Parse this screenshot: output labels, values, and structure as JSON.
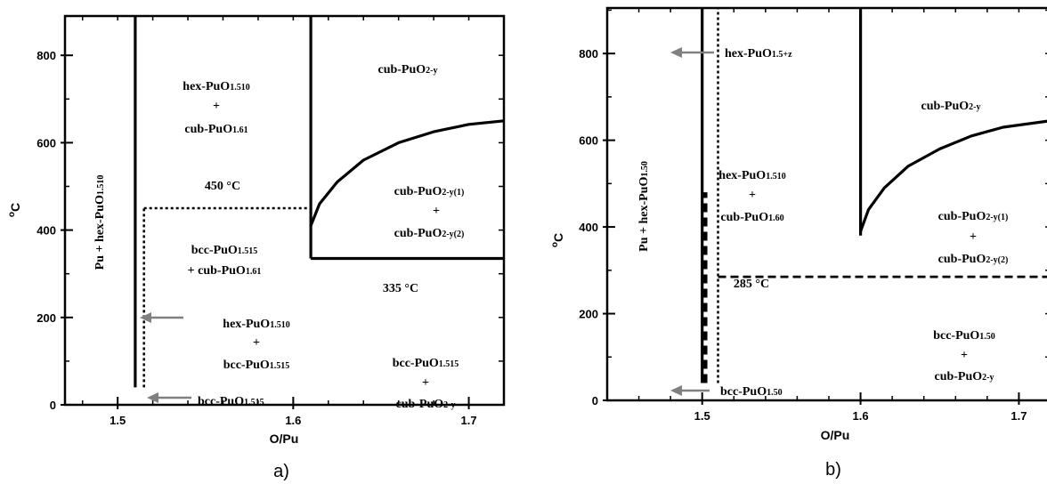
{
  "panels": [
    {
      "id": "a",
      "caption": "a)",
      "xlabel": "O/Pu",
      "ylabel_sup": "o",
      "ylabel": "C",
      "xlim": [
        1.47,
        1.72
      ],
      "ylim": [
        0,
        890
      ],
      "xticks": [
        {
          "v": 1.5,
          "t": "1.5"
        },
        {
          "v": 1.6,
          "t": "1.6"
        },
        {
          "v": 1.7,
          "t": "1.7"
        }
      ],
      "yticks": [
        {
          "v": 0,
          "t": "0"
        },
        {
          "v": 200,
          "t": "200"
        },
        {
          "v": 400,
          "t": "400"
        },
        {
          "v": 600,
          "t": "600"
        },
        {
          "v": 800,
          "t": "800"
        }
      ],
      "labels": {
        "hex_top": "hex-PuO",
        "hex_top_sub": "1.510",
        "plus1": "+",
        "cub_top": "cub-PuO",
        "cub_top_sub": "1.61",
        "temp_450": "450 °C",
        "bcc_mid": "bcc-PuO",
        "bcc_mid_sub": "1.515",
        "cub_mid": "+ cub-PuO",
        "cub_mid_sub": "1.61",
        "temp_335": "335 °C",
        "cub_right": "cub-PuO",
        "cub_right_sub": "2-y",
        "cub_y1": "cub-PuO",
        "cub_y1_sub": "2-y(1)",
        "plus2": "+",
        "cub_y2": "cub-PuO",
        "cub_y2_sub": "2-y(2)",
        "hex_low": "hex-PuO",
        "hex_low_sub": "1.510",
        "plus3": "+",
        "bcc_low": "bcc-PuO",
        "bcc_low_sub": "1.515",
        "bcc_right": "bcc-PuO",
        "bcc_right_sub": "1.515",
        "plus4": "+",
        "cub_low": "cub-PuO",
        "cub_low_sub": "2-y",
        "bcc_arrow": "bcc-PuO",
        "bcc_arrow_sub": "1.515",
        "vert": "Pu + hex-PuO",
        "vert_sub": "1.510"
      }
    },
    {
      "id": "b",
      "caption": "b)",
      "xlabel": "O/Pu",
      "ylabel_sup": "o",
      "ylabel": "C",
      "xlim": [
        1.44,
        1.72
      ],
      "ylim": [
        0,
        905
      ],
      "xticks": [
        {
          "v": 1.5,
          "t": "1.5"
        },
        {
          "v": 1.6,
          "t": "1.6"
        },
        {
          "v": 1.7,
          "t": "1.7"
        }
      ],
      "yticks": [
        {
          "v": 0,
          "t": "0"
        },
        {
          "v": 200,
          "t": "200"
        },
        {
          "v": 400,
          "t": "400"
        },
        {
          "v": 600,
          "t": "600"
        },
        {
          "v": 800,
          "t": "800"
        }
      ],
      "labels": {
        "hex_arrow": "hex-PuO",
        "hex_arrow_sub": "1.5+z",
        "cub_top": "cub-PuO",
        "cub_top_sub": "2-y",
        "hex_mid": "hex-PuO",
        "hex_mid_sub": "1.510",
        "plus1": "+",
        "cub_mid": "cub-PuO",
        "cub_mid_sub": "1.60",
        "temp_285": "285 °C",
        "cub_y1": "cub-PuO",
        "cub_y1_sub": "2-y(1)",
        "plus2": "+",
        "cub_y2": "cub-PuO",
        "cub_y2_sub": "2-y(2)",
        "bcc_right": "bcc-PuO",
        "bcc_right_sub": "1.50",
        "plus3": "+",
        "cub_low": "cub-PuO",
        "cub_low_sub": "2-y",
        "bcc_arrow": "bcc-PuO",
        "bcc_arrow_sub": "1.50",
        "vert": "Pu + hex-PuO",
        "vert_sub": "1.50"
      }
    }
  ],
  "chart_data": [
    {
      "type": "line",
      "title": "",
      "xlabel": "O/Pu",
      "ylabel": "oC",
      "xlim": [
        1.47,
        1.72
      ],
      "ylim": [
        0,
        890
      ],
      "series": [
        {
          "style": "solid",
          "x": [
            1.51,
            1.51
          ],
          "y": [
            40,
            890
          ]
        },
        {
          "style": "solid",
          "x": [
            1.61,
            1.61
          ],
          "y": [
            335,
            890
          ]
        },
        {
          "style": "solid",
          "x": [
            1.61,
            1.72
          ],
          "y": [
            335,
            335
          ]
        },
        {
          "style": "dotted",
          "x": [
            1.515,
            1.515
          ],
          "y": [
            40,
            450
          ]
        },
        {
          "style": "dotted",
          "x": [
            1.515,
            1.61
          ],
          "y": [
            450,
            450
          ]
        },
        {
          "style": "solid",
          "x": [
            1.61,
            1.615,
            1.625,
            1.64,
            1.66,
            1.68,
            1.7,
            1.72
          ],
          "y": [
            410,
            460,
            510,
            560,
            600,
            625,
            642,
            650
          ]
        }
      ]
    },
    {
      "type": "line",
      "title": "",
      "xlabel": "O/Pu",
      "ylabel": "oC",
      "xlim": [
        1.44,
        1.72
      ],
      "ylim": [
        0,
        905
      ],
      "series": [
        {
          "style": "solid",
          "x": [
            1.5,
            1.5
          ],
          "y": [
            40,
            905
          ]
        },
        {
          "style": "dashed-thick",
          "x": [
            1.502,
            1.502
          ],
          "y": [
            40,
            480
          ]
        },
        {
          "style": "dotted",
          "x": [
            1.51,
            1.51
          ],
          "y": [
            40,
            905
          ]
        },
        {
          "style": "solid",
          "x": [
            1.6,
            1.6
          ],
          "y": [
            380,
            905
          ]
        },
        {
          "style": "dashed",
          "x": [
            1.51,
            1.72
          ],
          "y": [
            285,
            285
          ]
        },
        {
          "style": "solid",
          "x": [
            1.6,
            1.605,
            1.615,
            1.63,
            1.65,
            1.67,
            1.69,
            1.72
          ],
          "y": [
            390,
            440,
            490,
            540,
            580,
            610,
            630,
            645
          ]
        }
      ]
    }
  ]
}
